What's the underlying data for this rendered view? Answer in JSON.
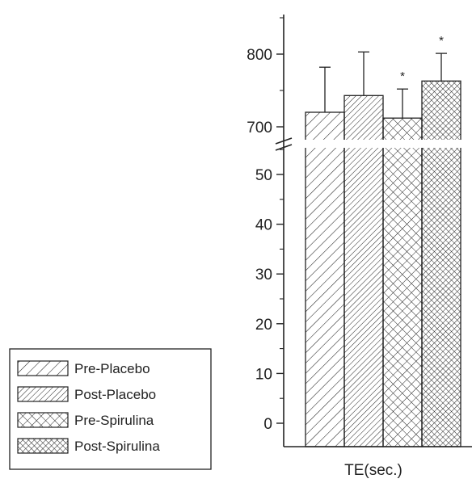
{
  "chart_data": {
    "type": "bar",
    "title": "",
    "xlabel": "TE(sec.)",
    "ylabel": "",
    "categories": [
      "TE(sec.)"
    ],
    "series": [
      {
        "name": "Pre-Placebo",
        "value": 720,
        "error": 62,
        "pattern": "diag-sparse",
        "significant": false
      },
      {
        "name": "Post-Placebo",
        "value": 743,
        "error": 60,
        "pattern": "diag-dense",
        "significant": false
      },
      {
        "name": "Pre-Spirulina",
        "value": 712,
        "error": 40,
        "pattern": "cross-sparse",
        "significant": true
      },
      {
        "name": "Post-Spirulina",
        "value": 763,
        "error": 38,
        "pattern": "cross-dense",
        "significant": true
      }
    ],
    "y_axis": {
      "broken": true,
      "lower_segment": {
        "range": [
          -5,
          58
        ],
        "ticks": [
          0,
          10,
          20,
          30,
          40,
          50
        ]
      },
      "upper_segment": {
        "range": [
          665,
          845
        ],
        "ticks": [
          700,
          800
        ]
      }
    },
    "significance_marker": "*",
    "legend_position": "bottom-left",
    "grid": false
  }
}
